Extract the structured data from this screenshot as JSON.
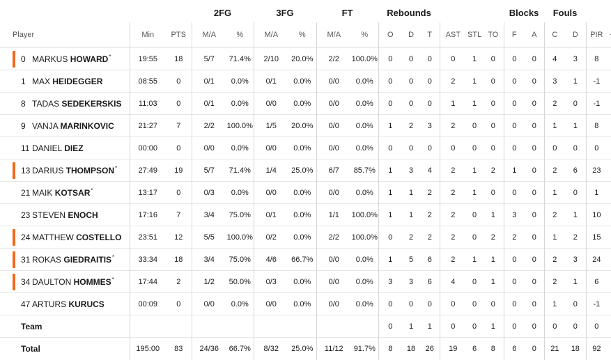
{
  "group_headers": {
    "fg2": "2FG",
    "fg3": "3FG",
    "ft": "FT",
    "rebounds": "Rebounds",
    "blocks": "Blocks",
    "fouls": "Fouls"
  },
  "columns": {
    "player": "Player",
    "min": "Min",
    "pts": "PTS",
    "fg2_ma": "M/A",
    "fg2_pct": "%",
    "fg3_ma": "M/A",
    "fg3_pct": "%",
    "ft_ma": "M/A",
    "ft_pct": "%",
    "reb_o": "O",
    "reb_d": "D",
    "reb_t": "T",
    "ast": "AST",
    "stl": "STL",
    "to": "TO",
    "blk_f": "F",
    "blk_a": "A",
    "foul_c": "C",
    "foul_d": "D",
    "pir": "PIR",
    "more": "+"
  },
  "players": [
    {
      "num": "0",
      "first": "MARKUS",
      "last": "HOWARD",
      "star": "*",
      "starter": true,
      "min": "19:55",
      "pts": "18",
      "fg2_ma": "5/7",
      "fg2_pct": "71.4%",
      "fg3_ma": "2/10",
      "fg3_pct": "20.0%",
      "ft_ma": "2/2",
      "ft_pct": "100.0%",
      "o": "0",
      "d": "0",
      "t": "0",
      "ast": "0",
      "stl": "1",
      "to": "0",
      "bf": "0",
      "ba": "0",
      "fc": "4",
      "fd": "3",
      "pir": "8"
    },
    {
      "num": "1",
      "first": "MAX",
      "last": "HEIDEGGER",
      "star": "",
      "starter": false,
      "min": "08:55",
      "pts": "0",
      "fg2_ma": "0/1",
      "fg2_pct": "0.0%",
      "fg3_ma": "0/1",
      "fg3_pct": "0.0%",
      "ft_ma": "0/0",
      "ft_pct": "0.0%",
      "o": "0",
      "d": "0",
      "t": "0",
      "ast": "2",
      "stl": "1",
      "to": "0",
      "bf": "0",
      "ba": "0",
      "fc": "3",
      "fd": "1",
      "pir": "-1"
    },
    {
      "num": "8",
      "first": "TADAS",
      "last": "SEDEKERSKIS",
      "star": "",
      "starter": false,
      "min": "11:03",
      "pts": "0",
      "fg2_ma": "0/1",
      "fg2_pct": "0.0%",
      "fg3_ma": "0/0",
      "fg3_pct": "0.0%",
      "ft_ma": "0/0",
      "ft_pct": "0.0%",
      "o": "0",
      "d": "0",
      "t": "0",
      "ast": "1",
      "stl": "1",
      "to": "0",
      "bf": "0",
      "ba": "0",
      "fc": "2",
      "fd": "0",
      "pir": "-1"
    },
    {
      "num": "9",
      "first": "VANJA",
      "last": "MARINKOVIC",
      "star": "",
      "starter": false,
      "min": "21:27",
      "pts": "7",
      "fg2_ma": "2/2",
      "fg2_pct": "100.0%",
      "fg3_ma": "1/5",
      "fg3_pct": "20.0%",
      "ft_ma": "0/0",
      "ft_pct": "0.0%",
      "o": "1",
      "d": "2",
      "t": "3",
      "ast": "2",
      "stl": "0",
      "to": "0",
      "bf": "0",
      "ba": "0",
      "fc": "1",
      "fd": "1",
      "pir": "8"
    },
    {
      "num": "11",
      "first": "DANIEL",
      "last": "DIEZ",
      "star": "",
      "starter": false,
      "min": "00:00",
      "pts": "0",
      "fg2_ma": "0/0",
      "fg2_pct": "0.0%",
      "fg3_ma": "0/0",
      "fg3_pct": "0.0%",
      "ft_ma": "0/0",
      "ft_pct": "0.0%",
      "o": "0",
      "d": "0",
      "t": "0",
      "ast": "0",
      "stl": "0",
      "to": "0",
      "bf": "0",
      "ba": "0",
      "fc": "0",
      "fd": "0",
      "pir": "0"
    },
    {
      "num": "13",
      "first": "DARIUS",
      "last": "THOMPSON",
      "star": "*",
      "starter": true,
      "min": "27:49",
      "pts": "19",
      "fg2_ma": "5/7",
      "fg2_pct": "71.4%",
      "fg3_ma": "1/4",
      "fg3_pct": "25.0%",
      "ft_ma": "6/7",
      "ft_pct": "85.7%",
      "o": "1",
      "d": "3",
      "t": "4",
      "ast": "2",
      "stl": "1",
      "to": "2",
      "bf": "1",
      "ba": "0",
      "fc": "2",
      "fd": "6",
      "pir": "23"
    },
    {
      "num": "21",
      "first": "MAIK",
      "last": "KOTSAR",
      "star": "*",
      "starter": false,
      "min": "13:17",
      "pts": "0",
      "fg2_ma": "0/3",
      "fg2_pct": "0.0%",
      "fg3_ma": "0/0",
      "fg3_pct": "0.0%",
      "ft_ma": "0/0",
      "ft_pct": "0.0%",
      "o": "1",
      "d": "1",
      "t": "2",
      "ast": "2",
      "stl": "1",
      "to": "0",
      "bf": "0",
      "ba": "0",
      "fc": "1",
      "fd": "0",
      "pir": "1"
    },
    {
      "num": "23",
      "first": "STEVEN",
      "last": "ENOCH",
      "star": "",
      "starter": false,
      "min": "17:16",
      "pts": "7",
      "fg2_ma": "3/4",
      "fg2_pct": "75.0%",
      "fg3_ma": "0/1",
      "fg3_pct": "0.0%",
      "ft_ma": "1/1",
      "ft_pct": "100.0%",
      "o": "1",
      "d": "1",
      "t": "2",
      "ast": "2",
      "stl": "0",
      "to": "1",
      "bf": "3",
      "ba": "0",
      "fc": "2",
      "fd": "1",
      "pir": "10"
    },
    {
      "num": "24",
      "first": "MATTHEW",
      "last": "COSTELLO",
      "star": "",
      "starter": true,
      "min": "23:51",
      "pts": "12",
      "fg2_ma": "5/5",
      "fg2_pct": "100.0%",
      "fg3_ma": "0/2",
      "fg3_pct": "0.0%",
      "ft_ma": "2/2",
      "ft_pct": "100.0%",
      "o": "0",
      "d": "2",
      "t": "2",
      "ast": "2",
      "stl": "0",
      "to": "2",
      "bf": "2",
      "ba": "0",
      "fc": "1",
      "fd": "2",
      "pir": "15"
    },
    {
      "num": "31",
      "first": "ROKAS",
      "last": "GIEDRAITIS",
      "star": "*",
      "starter": true,
      "min": "33:34",
      "pts": "18",
      "fg2_ma": "3/4",
      "fg2_pct": "75.0%",
      "fg3_ma": "4/6",
      "fg3_pct": "66.7%",
      "ft_ma": "0/0",
      "ft_pct": "0.0%",
      "o": "1",
      "d": "5",
      "t": "6",
      "ast": "2",
      "stl": "1",
      "to": "1",
      "bf": "0",
      "ba": "0",
      "fc": "2",
      "fd": "3",
      "pir": "24"
    },
    {
      "num": "34",
      "first": "DAULTON",
      "last": "HOMMES",
      "star": "*",
      "starter": true,
      "min": "17:44",
      "pts": "2",
      "fg2_ma": "1/2",
      "fg2_pct": "50.0%",
      "fg3_ma": "0/3",
      "fg3_pct": "0.0%",
      "ft_ma": "0/0",
      "ft_pct": "0.0%",
      "o": "3",
      "d": "3",
      "t": "6",
      "ast": "4",
      "stl": "0",
      "to": "1",
      "bf": "0",
      "ba": "0",
      "fc": "2",
      "fd": "1",
      "pir": "6"
    },
    {
      "num": "47",
      "first": "ARTURS",
      "last": "KURUCS",
      "star": "",
      "starter": false,
      "min": "00:09",
      "pts": "0",
      "fg2_ma": "0/0",
      "fg2_pct": "0.0%",
      "fg3_ma": "0/0",
      "fg3_pct": "0.0%",
      "ft_ma": "0/0",
      "ft_pct": "0.0%",
      "o": "0",
      "d": "0",
      "t": "0",
      "ast": "0",
      "stl": "0",
      "to": "0",
      "bf": "0",
      "ba": "0",
      "fc": "1",
      "fd": "0",
      "pir": "-1"
    }
  ],
  "team": {
    "label": "Team",
    "o": "0",
    "d": "1",
    "t": "1",
    "ast": "0",
    "stl": "0",
    "to": "1",
    "bf": "0",
    "ba": "0",
    "fc": "0",
    "fd": "0",
    "pir": "0"
  },
  "total": {
    "label": "Total",
    "min": "195:00",
    "pts": "83",
    "fg2_ma": "24/36",
    "fg2_pct": "66.7%",
    "fg3_ma": "8/32",
    "fg3_pct": "25.0%",
    "ft_ma": "11/12",
    "ft_pct": "91.7%",
    "o": "8",
    "d": "18",
    "t": "26",
    "ast": "19",
    "stl": "6",
    "to": "8",
    "bf": "6",
    "ba": "0",
    "fc": "21",
    "fd": "18",
    "pir": "92"
  },
  "colors": {
    "starter_accent": "#f06a1e"
  }
}
